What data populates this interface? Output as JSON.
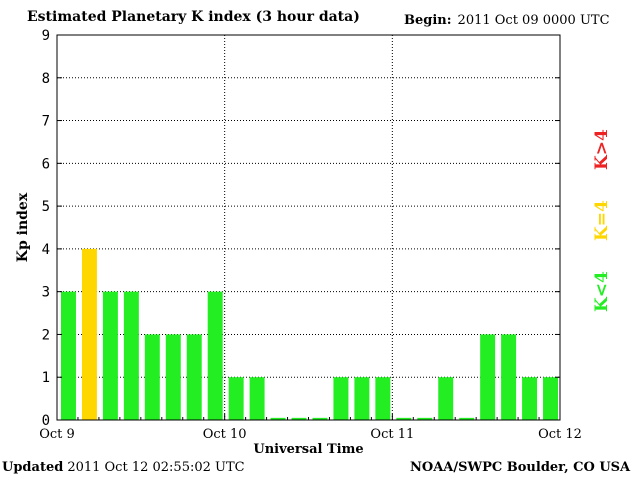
{
  "header": {
    "title": "Estimated Planetary K index (3 hour data)",
    "begin_label": "Begin:",
    "begin_value": "2011 Oct 09 0000 UTC"
  },
  "footer": {
    "updated_label": "Updated",
    "updated_value": "2011 Oct 12 02:55:02 UTC",
    "credit": "NOAA/SWPC Boulder, CO USA"
  },
  "legend": [
    {
      "label": "K<4",
      "color": "#22ee22"
    },
    {
      "label": "K=4",
      "color": "#ffd700"
    },
    {
      "label": "K>4",
      "color": "#ee2222"
    }
  ],
  "chart_data": {
    "type": "bar",
    "title": "Estimated Planetary K index (3 hour data)",
    "xlabel": "Universal Time",
    "ylabel": "Kp index",
    "ylim": [
      0,
      9
    ],
    "yticks": [
      "0",
      "1",
      "2",
      "3",
      "4",
      "5",
      "6",
      "7",
      "8",
      "9"
    ],
    "xticks": [
      "Oct 9",
      "Oct 10",
      "Oct 11",
      "Oct 12"
    ],
    "grid": true,
    "colors": {
      "below": "#22ee22",
      "equal": "#ffd700",
      "above": "#ee2222"
    },
    "values": [
      3,
      4,
      3,
      3,
      2,
      2,
      2,
      3,
      1,
      1,
      0.05,
      0.05,
      0.05,
      1,
      1,
      1,
      0.05,
      0.05,
      1,
      0.05,
      2,
      2,
      1,
      1
    ]
  }
}
